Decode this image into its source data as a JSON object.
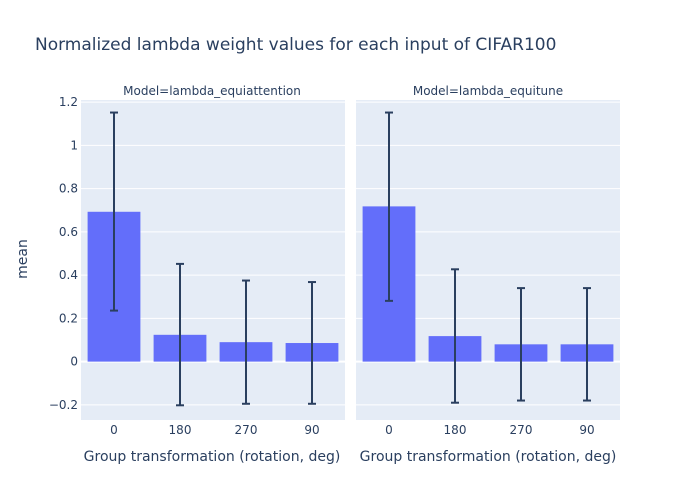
{
  "chart_data": {
    "type": "bar",
    "title": "Normalized lambda weight values for each input of CIFAR100",
    "ylabel": "mean",
    "ylim": [
      -0.27,
      1.21
    ],
    "yticks": [
      -0.2,
      0,
      0.2,
      0.4,
      0.6,
      0.8,
      1,
      1.2
    ],
    "ytick_labels": [
      "−0.2",
      "0",
      "0.2",
      "0.4",
      "0.6",
      "0.8",
      "1",
      "1.2"
    ],
    "grid": true,
    "bar_color": "#636efa",
    "error_color": "#2a3f5f",
    "plot_bg": "#e5ecf6",
    "panels": [
      {
        "facet_label": "Model=lambda_equiattention",
        "xlabel": "Group transformation (rotation, deg)",
        "categories": [
          "0",
          "180",
          "270",
          "90"
        ],
        "values": [
          0.693,
          0.124,
          0.09,
          0.086
        ],
        "error_upper": [
          1.152,
          0.452,
          0.375,
          0.368
        ],
        "error_lower": [
          0.236,
          -0.202,
          -0.195,
          -0.195
        ]
      },
      {
        "facet_label": "Model=lambda_equitune",
        "xlabel": "Group transformation (rotation, deg)",
        "categories": [
          "0",
          "180",
          "270",
          "90"
        ],
        "values": [
          0.718,
          0.118,
          0.08,
          0.08
        ],
        "error_upper": [
          1.152,
          0.427,
          0.34,
          0.34
        ],
        "error_lower": [
          0.281,
          -0.19,
          -0.18,
          -0.18
        ]
      }
    ]
  }
}
